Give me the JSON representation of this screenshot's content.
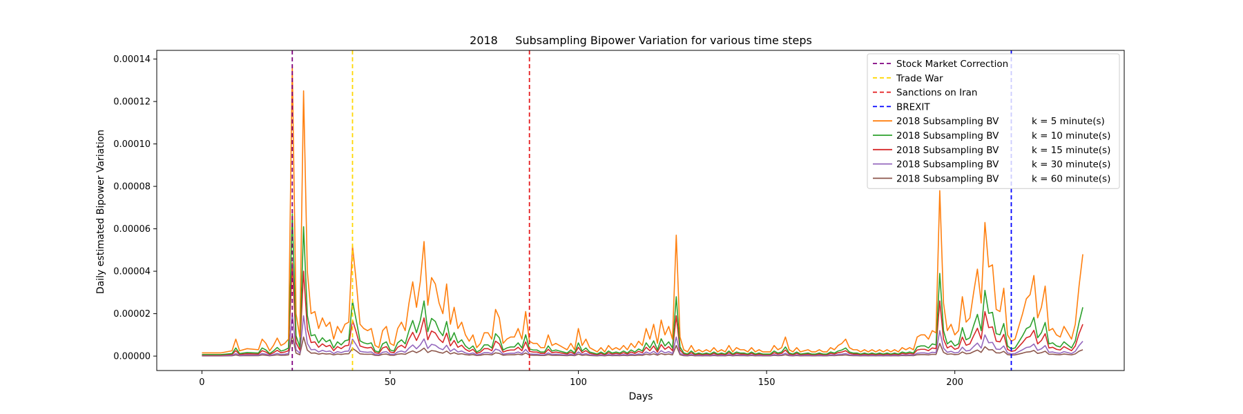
{
  "chart_data": {
    "type": "line",
    "title": "2018     Subsampling Bipower Variation for various time steps",
    "xlabel": "Days",
    "ylabel": "Daily estimated Bipower Variation",
    "xlim": [
      -12,
      245
    ],
    "ylim": [
      -6.8e-06,
      0.0001441
    ],
    "xticks": [
      0,
      50,
      100,
      150,
      200
    ],
    "yticks": [
      0.0,
      2e-05,
      4e-05,
      6e-05,
      8e-05,
      0.0001,
      0.00012,
      0.00014
    ],
    "ytick_labels": [
      "0.00000",
      "0.00002",
      "0.00004",
      "0.00006",
      "0.00008",
      "0.00010",
      "0.00012",
      "0.00014"
    ],
    "grid": false,
    "legend_position": "top-right",
    "events": [
      {
        "label": "Stock Market Correction",
        "x": 24,
        "color": "#800080"
      },
      {
        "label": "Trade War",
        "x": 40,
        "color": "#ffd700"
      },
      {
        "label": "Sanctions on Iran",
        "x": 87,
        "color": "#e41a1c"
      },
      {
        "label": "BREXIT",
        "x": 215,
        "color": "#0000ff"
      }
    ],
    "series": [
      {
        "name": "2018 Subsampling BV",
        "k_label": "k = 5 minute(s)",
        "color": "#ff7f0e",
        "anchors": [
          [
            0,
            1.5e-06
          ],
          [
            5,
            1.5e-06
          ],
          [
            8,
            2.5e-06
          ],
          [
            9,
            8e-06
          ],
          [
            10,
            2.5e-06
          ],
          [
            12,
            3.5e-06
          ],
          [
            15,
            3e-06
          ],
          [
            16,
            8e-06
          ],
          [
            17,
            6e-06
          ],
          [
            18,
            2.5e-06
          ],
          [
            19,
            5e-06
          ],
          [
            20,
            8.5e-06
          ],
          [
            21,
            5e-06
          ],
          [
            22,
            6e-06
          ],
          [
            23,
            8e-06
          ],
          [
            24,
            0.000137
          ],
          [
            25,
            2e-05
          ],
          [
            26,
            9e-06
          ],
          [
            27,
            0.000125
          ],
          [
            28,
            4e-05
          ],
          [
            29,
            2e-05
          ],
          [
            30,
            2.1e-05
          ],
          [
            31,
            1.3e-05
          ],
          [
            32,
            1.8e-05
          ],
          [
            33,
            1.4e-05
          ],
          [
            34,
            1.6e-05
          ],
          [
            35,
            8e-06
          ],
          [
            36,
            1.4e-05
          ],
          [
            37,
            1.1e-05
          ],
          [
            38,
            1.5e-05
          ],
          [
            39,
            1.6e-05
          ],
          [
            40,
            5.2e-05
          ],
          [
            41,
            3.5e-05
          ],
          [
            42,
            1.5e-05
          ],
          [
            43,
            1.3e-05
          ],
          [
            44,
            1.2e-05
          ],
          [
            45,
            1.3e-05
          ],
          [
            46,
            5e-06
          ],
          [
            47,
            4e-06
          ],
          [
            48,
            1.2e-05
          ],
          [
            49,
            1.4e-05
          ],
          [
            50,
            6e-06
          ],
          [
            51,
            5e-06
          ],
          [
            52,
            1.3e-05
          ],
          [
            53,
            1.6e-05
          ],
          [
            54,
            1.2e-05
          ],
          [
            55,
            2.5e-05
          ],
          [
            56,
            3.5e-05
          ],
          [
            57,
            2.3e-05
          ],
          [
            58,
            3.5e-05
          ],
          [
            59,
            5.4e-05
          ],
          [
            60,
            2.4e-05
          ],
          [
            61,
            3.7e-05
          ],
          [
            62,
            3.4e-05
          ],
          [
            63,
            2.5e-05
          ],
          [
            64,
            2e-05
          ],
          [
            65,
            3.4e-05
          ],
          [
            66,
            1.5e-05
          ],
          [
            67,
            2.3e-05
          ],
          [
            68,
            1.3e-05
          ],
          [
            69,
            1.6e-05
          ],
          [
            70,
            1e-05
          ],
          [
            71,
            7e-06
          ],
          [
            72,
            1e-05
          ],
          [
            73,
            4e-06
          ],
          [
            74,
            6e-06
          ],
          [
            75,
            1.1e-05
          ],
          [
            76,
            1.1e-05
          ],
          [
            77,
            8e-06
          ],
          [
            78,
            2.2e-05
          ],
          [
            79,
            1.8e-05
          ],
          [
            80,
            6e-06
          ],
          [
            81,
            8e-06
          ],
          [
            82,
            9e-06
          ],
          [
            83,
            9e-06
          ],
          [
            84,
            1.3e-05
          ],
          [
            85,
            8e-06
          ],
          [
            86,
            2.1e-05
          ],
          [
            87,
            7e-06
          ],
          [
            88,
            6e-06
          ],
          [
            89,
            6e-06
          ],
          [
            90,
            4e-06
          ],
          [
            91,
            4e-06
          ],
          [
            92,
            1e-05
          ],
          [
            93,
            5e-06
          ],
          [
            94,
            6e-06
          ],
          [
            95,
            5e-06
          ],
          [
            96,
            4e-06
          ],
          [
            97,
            3e-06
          ],
          [
            98,
            6e-06
          ],
          [
            99,
            3e-06
          ],
          [
            100,
            1.3e-05
          ],
          [
            101,
            5e-06
          ],
          [
            102,
            8e-06
          ],
          [
            103,
            4e-06
          ],
          [
            104,
            3e-06
          ],
          [
            105,
            2e-06
          ],
          [
            106,
            4e-06
          ],
          [
            107,
            2e-06
          ],
          [
            108,
            5e-06
          ],
          [
            109,
            3e-06
          ],
          [
            110,
            4e-06
          ],
          [
            111,
            3e-06
          ],
          [
            112,
            5e-06
          ],
          [
            113,
            3e-06
          ],
          [
            114,
            6e-06
          ],
          [
            115,
            4e-06
          ],
          [
            116,
            7e-06
          ],
          [
            117,
            5e-06
          ],
          [
            118,
            1.3e-05
          ],
          [
            119,
            8e-06
          ],
          [
            120,
            1.5e-05
          ],
          [
            121,
            6e-06
          ],
          [
            122,
            1.7e-05
          ],
          [
            123,
            1e-05
          ],
          [
            124,
            1.4e-05
          ],
          [
            125,
            8e-06
          ],
          [
            126,
            5.7e-05
          ],
          [
            127,
            9e-06
          ],
          [
            128,
            3e-06
          ],
          [
            129,
            2e-06
          ],
          [
            130,
            5e-06
          ],
          [
            131,
            2e-06
          ],
          [
            132,
            3e-06
          ],
          [
            133,
            2e-06
          ],
          [
            134,
            3e-06
          ],
          [
            135,
            2e-06
          ],
          [
            136,
            4e-06
          ],
          [
            137,
            2e-06
          ],
          [
            138,
            3e-06
          ],
          [
            139,
            2e-06
          ],
          [
            140,
            5e-06
          ],
          [
            141,
            2e-06
          ],
          [
            142,
            4e-06
          ],
          [
            143,
            3e-06
          ],
          [
            144,
            3e-06
          ],
          [
            145,
            2e-06
          ],
          [
            146,
            4e-06
          ],
          [
            147,
            2e-06
          ],
          [
            148,
            3e-06
          ],
          [
            149,
            2e-06
          ],
          [
            150,
            2e-06
          ],
          [
            151,
            2e-06
          ],
          [
            152,
            5e-06
          ],
          [
            153,
            3e-06
          ],
          [
            154,
            4e-06
          ],
          [
            155,
            9e-06
          ],
          [
            156,
            3e-06
          ],
          [
            157,
            2e-06
          ],
          [
            158,
            4e-06
          ],
          [
            159,
            2e-06
          ],
          [
            160,
            2.5e-06
          ],
          [
            161,
            3e-06
          ],
          [
            162,
            2e-06
          ],
          [
            163,
            2e-06
          ],
          [
            164,
            3e-06
          ],
          [
            165,
            2e-06
          ],
          [
            166,
            2e-06
          ],
          [
            167,
            4e-06
          ],
          [
            168,
            3e-06
          ],
          [
            169,
            5e-06
          ],
          [
            170,
            6e-06
          ],
          [
            171,
            8e-06
          ],
          [
            172,
            4e-06
          ],
          [
            173,
            3e-06
          ],
          [
            174,
            3e-06
          ],
          [
            175,
            2e-06
          ],
          [
            176,
            3e-06
          ],
          [
            177,
            2e-06
          ],
          [
            178,
            3e-06
          ],
          [
            179,
            2e-06
          ],
          [
            180,
            3e-06
          ],
          [
            181,
            2e-06
          ],
          [
            182,
            3e-06
          ],
          [
            183,
            2e-06
          ],
          [
            184,
            3e-06
          ],
          [
            185,
            2e-06
          ],
          [
            186,
            4e-06
          ],
          [
            187,
            3e-06
          ],
          [
            188,
            4e-06
          ],
          [
            189,
            3e-06
          ],
          [
            190,
            9e-06
          ],
          [
            191,
            1e-05
          ],
          [
            192,
            1e-05
          ],
          [
            193,
            8e-06
          ],
          [
            194,
            1.2e-05
          ],
          [
            195,
            1.1e-05
          ],
          [
            196,
            7.8e-05
          ],
          [
            197,
            2.5e-05
          ],
          [
            198,
            1.2e-05
          ],
          [
            199,
            1.5e-05
          ],
          [
            200,
            1e-05
          ],
          [
            201,
            1.2e-05
          ],
          [
            202,
            2.8e-05
          ],
          [
            203,
            1.6e-05
          ],
          [
            204,
            1.8e-05
          ],
          [
            205,
            3e-05
          ],
          [
            206,
            4.1e-05
          ],
          [
            207,
            2.5e-05
          ],
          [
            208,
            6.3e-05
          ],
          [
            209,
            4.2e-05
          ],
          [
            210,
            4.3e-05
          ],
          [
            211,
            2.2e-05
          ],
          [
            212,
            2.1e-05
          ],
          [
            213,
            3.2e-05
          ],
          [
            214,
            1e-05
          ],
          [
            215,
            7e-06
          ],
          [
            216,
            8e-06
          ],
          [
            217,
            1.4e-05
          ],
          [
            218,
            2e-05
          ],
          [
            219,
            2.7e-05
          ],
          [
            220,
            2.9e-05
          ],
          [
            221,
            3.8e-05
          ],
          [
            222,
            1.8e-05
          ],
          [
            223,
            2.3e-05
          ],
          [
            224,
            3.3e-05
          ],
          [
            225,
            1.2e-05
          ],
          [
            226,
            1.3e-05
          ],
          [
            227,
            1e-05
          ],
          [
            228,
            9e-06
          ],
          [
            229,
            1.4e-05
          ],
          [
            230,
            1.1e-05
          ],
          [
            231,
            8e-06
          ],
          [
            232,
            1.5e-05
          ],
          [
            233,
            3.3e-05
          ],
          [
            234,
            4.8e-05
          ]
        ]
      },
      {
        "name": "2018 Subsampling BV",
        "k_label": "k = 10 minute(s)",
        "color": "#2ca02c",
        "scale": 0.48,
        "overrides": [
          [
            24,
            6.7e-05
          ],
          [
            27,
            6.1e-05
          ],
          [
            40,
            2.6e-05
          ],
          [
            59,
            2.6e-05
          ],
          [
            126,
            2.8e-05
          ],
          [
            196,
            3.9e-05
          ],
          [
            208,
            3.1e-05
          ],
          [
            234,
            2.3e-05
          ]
        ]
      },
      {
        "name": "2018 Subsampling BV",
        "k_label": "k = 15 minute(s)",
        "color": "#d62728",
        "scale": 0.32,
        "overrides": [
          [
            24,
            4.4e-05
          ],
          [
            27,
            4e-05
          ],
          [
            40,
            1.7e-05
          ],
          [
            59,
            1.8e-05
          ],
          [
            126,
            1.9e-05
          ],
          [
            196,
            2.6e-05
          ],
          [
            208,
            2.1e-05
          ],
          [
            234,
            1.5e-05
          ]
        ]
      },
      {
        "name": "2018 Subsampling BV",
        "k_label": "k = 30 minute(s)",
        "color": "#9467bd",
        "scale": 0.15,
        "overrides": [
          [
            24,
            2e-05
          ],
          [
            27,
            1.9e-05
          ],
          [
            40,
            8e-06
          ],
          [
            126,
            9e-06
          ],
          [
            196,
            1.2e-05
          ],
          [
            208,
            1e-05
          ],
          [
            234,
            7e-06
          ]
        ]
      },
      {
        "name": "2018 Subsampling BV",
        "k_label": "k = 60 minute(s)",
        "color": "#8c564b",
        "scale": 0.07,
        "overrides": [
          [
            24,
            1e-05
          ],
          [
            27,
            9e-06
          ],
          [
            126,
            5e-06
          ],
          [
            196,
            6e-06
          ],
          [
            234,
            3e-06
          ]
        ]
      }
    ]
  }
}
